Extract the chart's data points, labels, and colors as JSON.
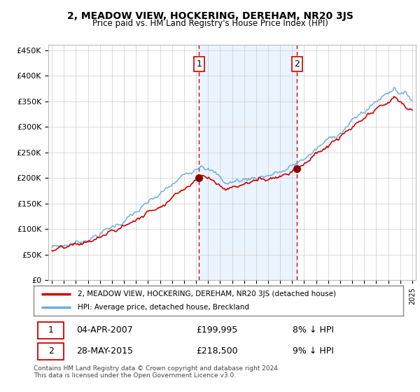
{
  "title": "2, MEADOW VIEW, HOCKERING, DEREHAM, NR20 3JS",
  "subtitle": "Price paid vs. HM Land Registry's House Price Index (HPI)",
  "ylabel_ticks": [
    "£0",
    "£50K",
    "£100K",
    "£150K",
    "£200K",
    "£250K",
    "£300K",
    "£350K",
    "£400K",
    "£450K"
  ],
  "ytick_values": [
    0,
    50000,
    100000,
    150000,
    200000,
    250000,
    300000,
    350000,
    400000,
    450000
  ],
  "ylim": [
    0,
    460000
  ],
  "xlim_left": 1994.7,
  "xlim_right": 2025.3,
  "sale1_date": 2007.25,
  "sale1_price": 199995,
  "sale1_label": "1",
  "sale2_date": 2015.42,
  "sale2_price": 218500,
  "sale2_label": "2",
  "legend_line1": "2, MEADOW VIEW, HOCKERING, DEREHAM, NR20 3JS (detached house)",
  "legend_line2": "HPI: Average price, detached house, Breckland",
  "table_row1": [
    "1",
    "04-APR-2007",
    "£199,995",
    "8% ↓ HPI"
  ],
  "table_row2": [
    "2",
    "28-MAY-2015",
    "£218,500",
    "9% ↓ HPI"
  ],
  "footnote": "Contains HM Land Registry data © Crown copyright and database right 2024.\nThis data is licensed under the Open Government Licence v3.0.",
  "hpi_color": "#6baed6",
  "price_color": "#cc0000",
  "sale_dot_color": "#8b0000",
  "shade_color": "#ddeeff",
  "vline_color": "#cc0000",
  "grid_color": "#cccccc",
  "legend_border_color": "#888888",
  "box_edge_color": "#cc0000"
}
